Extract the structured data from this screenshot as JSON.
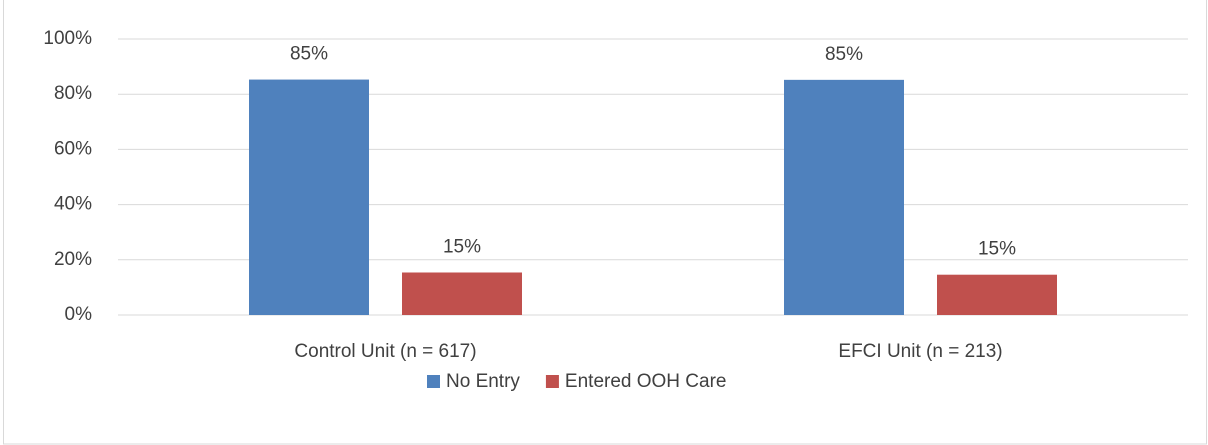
{
  "chart_data": {
    "type": "bar",
    "categories": [
      "Control Unit (n = 617)",
      "EFCI Unit (n = 213)"
    ],
    "series": [
      {
        "name": "No Entry",
        "color": "#4f81bd",
        "values": [
          85.3,
          85.2
        ],
        "value_labels": [
          "85%",
          "85%"
        ]
      },
      {
        "name": "Entered OOH Care",
        "color": "#c0504d",
        "values": [
          15.4,
          14.6
        ],
        "value_labels": [
          "15%",
          "15%"
        ]
      }
    ],
    "ylim": [
      0,
      100
    ],
    "yticks": [
      {
        "value": 0,
        "label": "0%"
      },
      {
        "value": 20,
        "label": "20%"
      },
      {
        "value": 40,
        "label": "40%"
      },
      {
        "value": 60,
        "label": "60%"
      },
      {
        "value": 80,
        "label": "80%"
      },
      {
        "value": 100,
        "label": "100%"
      }
    ],
    "grid": true,
    "legend": "bottom"
  }
}
